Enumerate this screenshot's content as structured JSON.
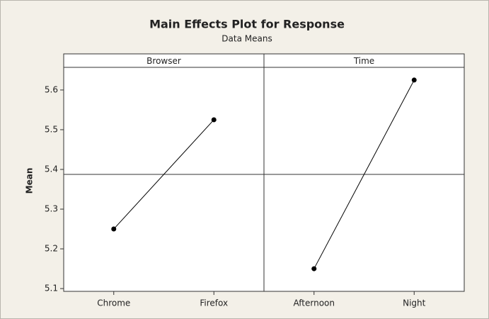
{
  "chart_data": {
    "type": "line",
    "title": "Main Effects Plot for Response",
    "subtitle": "Data Means",
    "ylabel": "Mean",
    "ylim": [
      5.093,
      5.657
    ],
    "yticks": [
      5.1,
      5.2,
      5.3,
      5.4,
      5.5,
      5.6
    ],
    "reference_line": 5.3875,
    "color": "#000000",
    "panels": [
      {
        "name": "Browser",
        "categories": [
          "Chrome",
          "Firefox"
        ],
        "values": [
          5.25,
          5.525
        ]
      },
      {
        "name": "Time",
        "categories": [
          "Afternoon",
          "Night"
        ],
        "values": [
          5.15,
          5.625
        ]
      }
    ]
  }
}
